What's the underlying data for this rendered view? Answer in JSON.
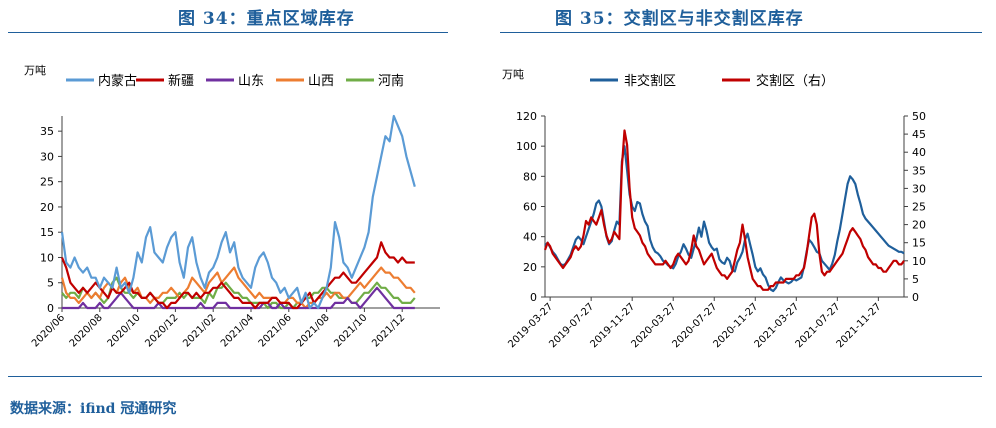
{
  "header": {
    "left_title": "图 34：重点区域库存",
    "right_title": "图 35：交割区与非交割区库存"
  },
  "footer": {
    "source": "数据来源：ifind 冠通研究"
  },
  "colors": {
    "accent": "#1f5f9b"
  },
  "chart_data": [
    {
      "type": "line",
      "unit": "万吨",
      "ylim": [
        0,
        38
      ],
      "yticks": [
        0,
        5,
        10,
        15,
        20,
        25,
        30,
        35
      ],
      "x_tick_labels": [
        "2020/06",
        "2020/08",
        "2020/10",
        "2020/12",
        "2021/02",
        "2021/04",
        "2021/06",
        "2021/08",
        "2021/10",
        "2021/12"
      ],
      "xlim": [
        0,
        90
      ],
      "x_tick_positions": [
        0,
        9,
        18,
        27,
        36,
        45,
        54,
        63,
        72,
        81
      ],
      "series": [
        {
          "name": "内蒙古",
          "color": "#5b9bd5",
          "values": [
            15,
            9,
            8,
            10,
            8,
            7,
            8,
            6,
            6,
            4,
            6,
            5,
            4,
            8,
            4,
            5,
            3,
            6,
            11,
            9,
            14,
            16,
            11,
            10,
            9,
            12,
            14,
            15,
            9,
            6,
            12,
            14,
            9,
            6,
            4,
            7,
            8,
            10,
            13,
            15,
            11,
            13,
            8,
            6,
            5,
            4,
            8,
            10,
            11,
            9,
            6,
            5,
            3,
            4,
            2,
            3,
            4,
            1,
            3,
            0,
            1,
            0,
            2,
            4,
            8,
            17,
            14,
            9,
            8,
            6,
            8,
            10,
            12,
            15,
            22,
            26,
            30,
            34,
            33,
            38,
            36,
            34,
            30,
            27,
            24
          ]
        },
        {
          "name": "新疆",
          "color": "#c00000",
          "values": [
            10,
            8,
            5,
            4,
            3,
            4,
            3,
            4,
            5,
            4,
            3,
            2,
            4,
            3,
            3,
            4,
            5,
            3,
            3,
            2,
            2,
            3,
            2,
            1,
            1,
            0,
            1,
            1,
            2,
            3,
            3,
            2,
            3,
            2,
            3,
            3,
            4,
            4,
            5,
            4,
            3,
            2,
            2,
            1,
            1,
            1,
            0,
            1,
            1,
            1,
            2,
            2,
            1,
            1,
            1,
            0,
            0,
            1,
            2,
            3,
            1,
            2,
            3,
            4,
            5,
            6,
            6,
            7,
            6,
            5,
            5,
            6,
            7,
            8,
            9,
            10,
            13,
            11,
            10,
            10,
            9,
            10,
            9,
            9,
            9
          ]
        },
        {
          "name": "山东",
          "color": "#7030a0",
          "values": [
            0,
            0,
            0,
            0,
            0,
            1,
            0,
            0,
            0,
            1,
            0,
            0,
            1,
            2,
            3,
            2,
            1,
            0,
            0,
            0,
            0,
            0,
            0,
            1,
            0,
            0,
            0,
            0,
            0,
            0,
            0,
            0,
            0,
            1,
            0,
            0,
            0,
            1,
            1,
            1,
            0,
            0,
            0,
            0,
            0,
            0,
            0,
            0,
            1,
            1,
            0,
            0,
            1,
            0,
            0,
            0,
            0,
            0,
            0,
            0,
            0,
            0,
            0,
            0,
            0,
            1,
            1,
            1,
            2,
            1,
            1,
            0,
            1,
            2,
            3,
            4,
            3,
            2,
            1,
            0,
            0,
            0,
            0,
            0,
            0
          ]
        },
        {
          "name": "山西",
          "color": "#ed7d31",
          "values": [
            6,
            3,
            2,
            2,
            1,
            2,
            3,
            2,
            3,
            2,
            4,
            5,
            4,
            3,
            5,
            6,
            4,
            3,
            4,
            2,
            2,
            1,
            2,
            2,
            3,
            3,
            4,
            3,
            2,
            3,
            4,
            6,
            5,
            4,
            3,
            5,
            6,
            7,
            5,
            6,
            7,
            8,
            6,
            5,
            4,
            3,
            2,
            3,
            2,
            2,
            2,
            2,
            1,
            1,
            2,
            2,
            1,
            1,
            0,
            1,
            1,
            2,
            2,
            3,
            2,
            3,
            3,
            2,
            2,
            3,
            4,
            5,
            4,
            5,
            6,
            7,
            8,
            7,
            7,
            6,
            6,
            5,
            4,
            4,
            3
          ]
        },
        {
          "name": "河南",
          "color": "#70ad47",
          "values": [
            3,
            2,
            3,
            3,
            2,
            4,
            3,
            2,
            3,
            2,
            1,
            2,
            5,
            6,
            4,
            3,
            3,
            2,
            3,
            2,
            2,
            3,
            2,
            1,
            1,
            2,
            2,
            2,
            3,
            2,
            3,
            2,
            2,
            2,
            1,
            3,
            2,
            4,
            4,
            5,
            4,
            3,
            3,
            2,
            2,
            1,
            1,
            1,
            1,
            0,
            1,
            1,
            0,
            0,
            1,
            0,
            1,
            1,
            2,
            2,
            3,
            3,
            4,
            4,
            3,
            3,
            2,
            2,
            2,
            1,
            1,
            2,
            3,
            3,
            4,
            5,
            4,
            4,
            3,
            2,
            2,
            1,
            1,
            1,
            2
          ]
        }
      ]
    },
    {
      "type": "line",
      "unit": "万吨",
      "ylim_left": [
        0,
        120
      ],
      "yticks_left": [
        0,
        20,
        40,
        60,
        80,
        100,
        120
      ],
      "ylim_right": [
        0,
        50
      ],
      "yticks_right": [
        0,
        5,
        10,
        15,
        20,
        25,
        30,
        35,
        40,
        45,
        50
      ],
      "x_tick_labels": [
        "2019-03-27",
        "2019-07-27",
        "2019-11-27",
        "2020-03-27",
        "2020-07-27",
        "2020-11-27",
        "2021-03-27",
        "2021-07-27",
        "2021-11-27"
      ],
      "xlim": [
        0,
        140
      ],
      "x_tick_positions": [
        2,
        18,
        34,
        50,
        66,
        82,
        98,
        114,
        130
      ],
      "series": [
        {
          "name": "非交割区",
          "axis": "left",
          "color": "#1f5f9b",
          "values": [
            34,
            36,
            33,
            30,
            28,
            25,
            22,
            21,
            22,
            25,
            28,
            33,
            38,
            40,
            38,
            35,
            40,
            45,
            50,
            55,
            62,
            64,
            60,
            50,
            40,
            35,
            37,
            44,
            50,
            48,
            90,
            100,
            84,
            68,
            60,
            57,
            63,
            62,
            55,
            50,
            47,
            38,
            33,
            30,
            29,
            27,
            24,
            23,
            21,
            20,
            19,
            22,
            27,
            30,
            35,
            32,
            28,
            26,
            32,
            38,
            46,
            40,
            50,
            44,
            36,
            33,
            31,
            32,
            25,
            23,
            22,
            26,
            24,
            18,
            17,
            23,
            26,
            30,
            38,
            42,
            35,
            28,
            20,
            17,
            19,
            15,
            13,
            8,
            5,
            4,
            6,
            10,
            13,
            11,
            10,
            9,
            10,
            12,
            11,
            12,
            13,
            20,
            30,
            38,
            36,
            33,
            30,
            29,
            24,
            22,
            20,
            18,
            22,
            28,
            37,
            45,
            55,
            65,
            75,
            80,
            78,
            75,
            68,
            62,
            55,
            52,
            50,
            48,
            46,
            44,
            42,
            40,
            38,
            36,
            34,
            33,
            32,
            31,
            30,
            30,
            29
          ]
        },
        {
          "name": "交割区（右）",
          "axis": "right",
          "color": "#c00000",
          "values": [
            13,
            15,
            14,
            12,
            11,
            10,
            9,
            8,
            9,
            10,
            11,
            13,
            14,
            13,
            14,
            17,
            21,
            20,
            22,
            21,
            20,
            22,
            24,
            20,
            17,
            15,
            16,
            18,
            17,
            16,
            36,
            46,
            42,
            30,
            22,
            19,
            18,
            17,
            15,
            14,
            12,
            11,
            10,
            9,
            9,
            9,
            9,
            10,
            9,
            8,
            9,
            11,
            12,
            11,
            10,
            9,
            10,
            13,
            17,
            14,
            13,
            11,
            9,
            10,
            11,
            12,
            10,
            8,
            7,
            6,
            6,
            5,
            6,
            7,
            10,
            13,
            15,
            20,
            16,
            11,
            8,
            5,
            4,
            3,
            3,
            2,
            2,
            2,
            3,
            3,
            4,
            4,
            4,
            4,
            5,
            5,
            5,
            5,
            6,
            6,
            7,
            8,
            12,
            17,
            22,
            23,
            20,
            12,
            7,
            6,
            7,
            7,
            8,
            9,
            10,
            11,
            12,
            14,
            16,
            18,
            19,
            18,
            17,
            16,
            14,
            13,
            11,
            10,
            9,
            9,
            8,
            8,
            7,
            7,
            8,
            9,
            10,
            10,
            9,
            9,
            10
          ]
        }
      ]
    }
  ]
}
